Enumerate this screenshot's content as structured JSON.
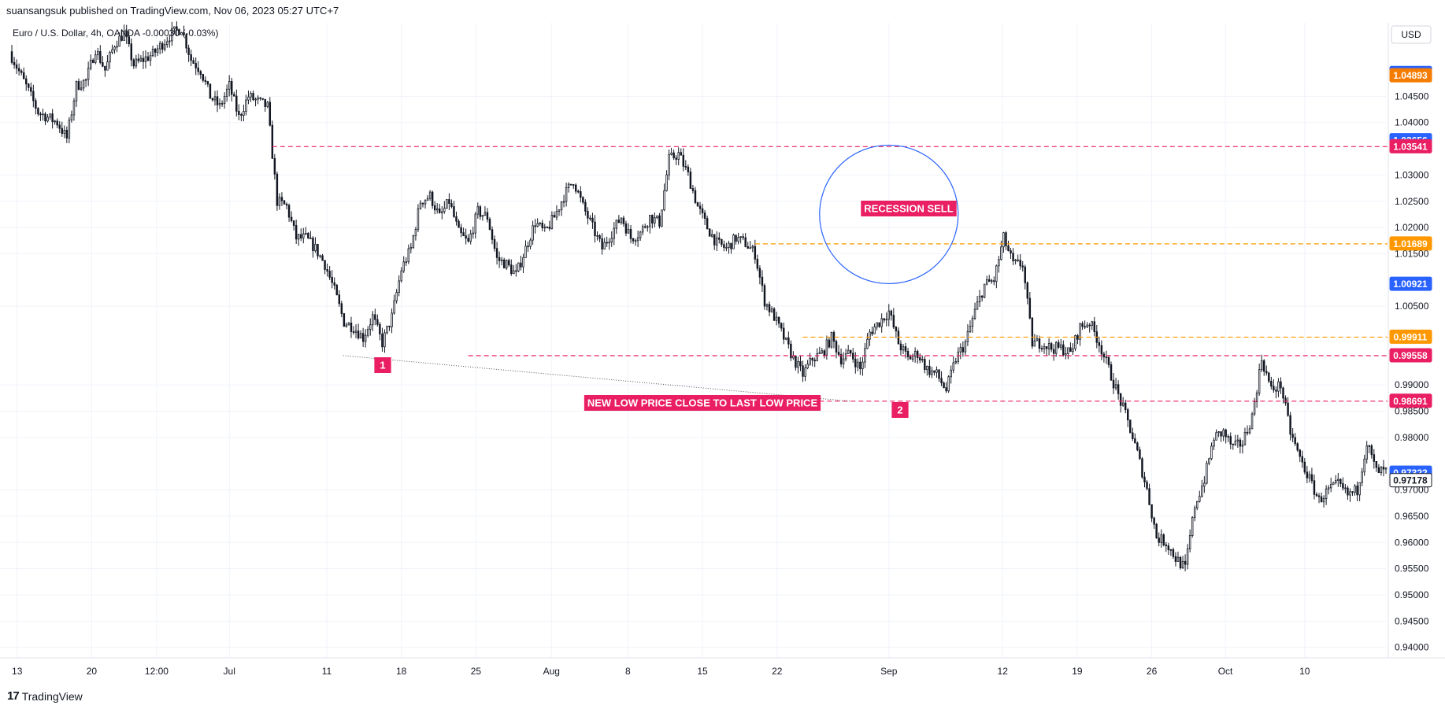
{
  "publisher": "suansangsuk published on TradingView.com, Nov 06, 2023 05:27 UTC+7",
  "branding": {
    "logo_text": "TradingView",
    "logo_icon": "tradingview-logo-icon"
  },
  "chart_data": {
    "type": "candlestick",
    "header": "Euro / U.S. Dollar, 4h, OANDA  -0.00030 (-0.03%)",
    "currency": "USD",
    "ylim": [
      0.938,
      1.059
    ],
    "grid": true,
    "x_ticks": [
      {
        "label": "13",
        "t": 0.8
      },
      {
        "label": "20",
        "t": 8.6
      },
      {
        "label": "12:00",
        "t": 15.4
      },
      {
        "label": "Jul",
        "t": 23.0
      },
      {
        "label": "11",
        "t": 33.2
      },
      {
        "label": "18",
        "t": 41.0
      },
      {
        "label": "25",
        "t": 48.8
      },
      {
        "label": "Aug",
        "t": 56.7
      },
      {
        "label": "8",
        "t": 64.7
      },
      {
        "label": "15",
        "t": 72.5
      },
      {
        "label": "22",
        "t": 80.3
      },
      {
        "label": "Sep",
        "t": 92.0
      },
      {
        "label": "12",
        "t": 103.9
      },
      {
        "label": "19",
        "t": 111.7
      },
      {
        "label": "26",
        "t": 119.5
      },
      {
        "label": "Oct",
        "t": 127.2
      },
      {
        "label": "10",
        "t": 135.5
      }
    ],
    "y_ticks": [
      1.045,
      1.04,
      1.03,
      1.025,
      1.02,
      1.015,
      1.005,
      0.99,
      0.985,
      0.98,
      0.97,
      0.965,
      0.96,
      0.955,
      0.95,
      0.945,
      0.94
    ],
    "t_range": [
      0,
      144
    ],
    "closes": [
      [
        0,
        1.0535
      ],
      [
        2,
        1.046
      ],
      [
        3,
        1.042
      ],
      [
        5,
        1.04
      ],
      [
        6,
        1.037
      ],
      [
        7,
        1.047
      ],
      [
        8,
        1.048
      ],
      [
        9,
        1.054
      ],
      [
        10,
        1.05
      ],
      [
        11,
        1.055
      ],
      [
        12,
        1.057
      ],
      [
        13,
        1.051
      ],
      [
        15,
        1.053
      ],
      [
        16,
        1.055
      ],
      [
        17,
        1.057
      ],
      [
        18,
        1.058
      ],
      [
        19,
        1.052
      ],
      [
        20,
        1.05
      ],
      [
        21,
        1.045
      ],
      [
        22,
        1.043
      ],
      [
        23,
        1.047
      ],
      [
        24,
        1.041
      ],
      [
        25,
        1.045
      ],
      [
        26,
        1.044
      ],
      [
        27,
        1.043
      ],
      [
        28,
        1.025
      ],
      [
        29,
        1.024
      ],
      [
        30,
        1.018
      ],
      [
        31,
        1.018
      ],
      [
        32,
        1.016
      ],
      [
        33,
        1.013
      ],
      [
        34,
        1.008
      ],
      [
        35,
        1.002
      ],
      [
        36,
        1.001
      ],
      [
        37,
        0.999
      ],
      [
        38,
        1.003
      ],
      [
        39,
        0.998
      ],
      [
        40,
        1.003
      ],
      [
        41,
        1.012
      ],
      [
        42,
        1.016
      ],
      [
        43,
        1.025
      ],
      [
        44,
        1.026
      ],
      [
        45,
        1.022
      ],
      [
        46,
        1.025
      ],
      [
        47,
        1.019
      ],
      [
        48,
        1.017
      ],
      [
        49,
        1.023
      ],
      [
        50,
        1.022
      ],
      [
        51,
        1.014
      ],
      [
        52,
        1.013
      ],
      [
        53,
        1.011
      ],
      [
        54,
        1.016
      ],
      [
        55,
        1.021
      ],
      [
        56,
        1.019
      ],
      [
        57,
        1.022
      ],
      [
        58,
        1.026
      ],
      [
        59,
        1.029
      ],
      [
        60,
        1.024
      ],
      [
        61,
        1.02
      ],
      [
        62,
        1.016
      ],
      [
        63,
        1.019
      ],
      [
        64,
        1.022
      ],
      [
        65,
        1.018
      ],
      [
        66,
        1.019
      ],
      [
        67,
        1.022
      ],
      [
        68,
        1.021
      ],
      [
        69,
        1.033
      ],
      [
        70,
        1.034
      ],
      [
        71,
        1.03
      ],
      [
        72,
        1.024
      ],
      [
        73,
        1.02
      ],
      [
        74,
        1.017
      ],
      [
        75,
        1.016
      ],
      [
        76,
        1.018
      ],
      [
        77,
        1.017
      ],
      [
        78,
        1.015
      ],
      [
        79,
        1.006
      ],
      [
        80,
        1.003
      ],
      [
        81,
        0.999
      ],
      [
        82,
        0.995
      ],
      [
        83,
        0.992
      ],
      [
        84,
        0.995
      ],
      [
        85,
        0.996
      ],
      [
        86,
        0.999
      ],
      [
        87,
        0.995
      ],
      [
        88,
        0.996
      ],
      [
        89,
        0.993
      ],
      [
        90,
        1.0
      ],
      [
        91,
        1.002
      ],
      [
        92,
        1.004
      ],
      [
        93,
        0.998
      ],
      [
        94,
        0.995
      ],
      [
        95,
        0.996
      ],
      [
        96,
        0.993
      ],
      [
        97,
        0.992
      ],
      [
        98,
        0.989
      ],
      [
        99,
        0.995
      ],
      [
        100,
        0.998
      ],
      [
        101,
        1.004
      ],
      [
        102,
        1.009
      ],
      [
        103,
        1.01
      ],
      [
        104,
        1.018
      ],
      [
        105,
        1.013
      ],
      [
        106,
        1.013
      ],
      [
        107,
        0.998
      ],
      [
        108,
        0.998
      ],
      [
        109,
        0.997
      ],
      [
        110,
        0.997
      ],
      [
        111,
        0.996
      ],
      [
        112,
        1.001
      ],
      [
        113,
        1.002
      ],
      [
        114,
        0.998
      ],
      [
        115,
        0.993
      ],
      [
        116,
        0.988
      ],
      [
        117,
        0.983
      ],
      [
        118,
        0.977
      ],
      [
        119,
        0.97
      ],
      [
        120,
        0.961
      ],
      [
        121,
        0.96
      ],
      [
        122,
        0.957
      ],
      [
        123,
        0.955
      ],
      [
        124,
        0.967
      ],
      [
        125,
        0.972
      ],
      [
        126,
        0.98
      ],
      [
        127,
        0.981
      ],
      [
        128,
        0.978
      ],
      [
        129,
        0.979
      ],
      [
        130,
        0.984
      ],
      [
        131,
        0.995
      ],
      [
        132,
        0.989
      ],
      [
        133,
        0.99
      ],
      [
        134,
        0.981
      ],
      [
        135,
        0.976
      ],
      [
        136,
        0.972
      ],
      [
        137,
        0.968
      ],
      [
        138,
        0.97
      ],
      [
        139,
        0.971
      ],
      [
        140,
        0.969
      ],
      [
        141,
        0.97
      ],
      [
        142,
        0.979
      ],
      [
        143,
        0.9735
      ]
    ],
    "price_tags": [
      {
        "label": "1.04937",
        "value": 1.04937,
        "color": "#2962ff"
      },
      {
        "label": "1.04893",
        "value": 1.04893,
        "color": "#f57c00"
      },
      {
        "label": "1.03656",
        "value": 1.03656,
        "color": "#2962ff"
      },
      {
        "label": "1.03541",
        "value": 1.03541,
        "color": "#e91e63"
      },
      {
        "label": "1.01689",
        "value": 1.01689,
        "color": "#ff9800"
      },
      {
        "label": "1.00921",
        "value": 1.00921,
        "color": "#2962ff"
      },
      {
        "label": "0.99911",
        "value": 0.99911,
        "color": "#ff9800"
      },
      {
        "label": "0.99558",
        "value": 0.99558,
        "color": "#e91e63"
      },
      {
        "label": "0.98691",
        "value": 0.98691,
        "color": "#e91e63"
      },
      {
        "label": "0.97322",
        "value": 0.97322,
        "color": "#2962ff"
      },
      {
        "label": "0.97178",
        "value": 0.97178,
        "color": "#ffffff"
      }
    ],
    "hlines": [
      {
        "value": 1.03541,
        "t_start": 27.5,
        "color": "#e91e63"
      },
      {
        "value": 1.01689,
        "t_start": 78.0,
        "color": "#ff9800"
      },
      {
        "value": 0.99911,
        "t_start": 83.0,
        "color": "#ff9800"
      },
      {
        "value": 0.99558,
        "t_start": 48.0,
        "color": "#e91e63"
      },
      {
        "value": 0.98691,
        "t_start": 74.0,
        "color": "#e91e63"
      }
    ],
    "annotations": {
      "recession_sell": "RECESSION SELL",
      "new_low": "NEW LOW PRICE CLOSE TO LAST LOW PRICE",
      "marker_1": "1",
      "marker_2": "2"
    },
    "colors": {
      "candle": "#131722",
      "grid": "#f0f3fa",
      "accent_pink": "#e91e63",
      "circle": "#2962ff"
    }
  }
}
